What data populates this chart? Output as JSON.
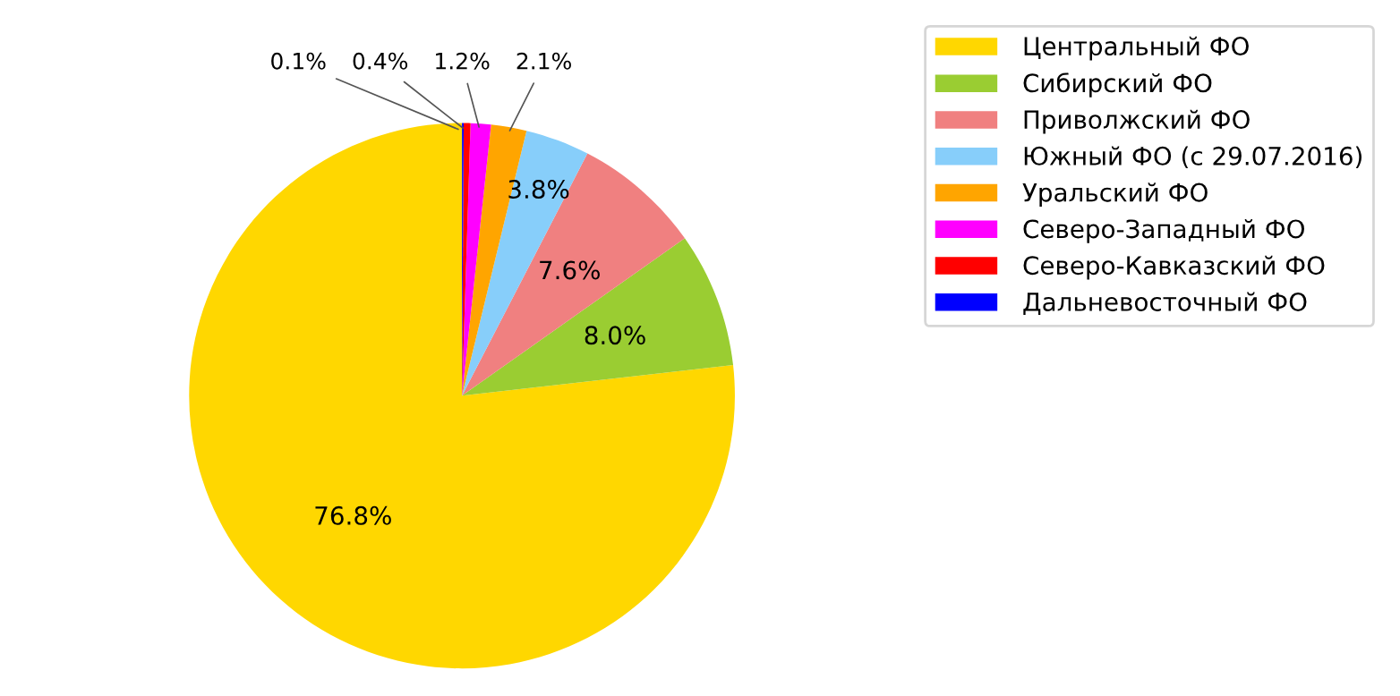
{
  "chart_data": {
    "type": "pie",
    "categories": [
      "Центральный ФО",
      "Сибирский ФО",
      "Приволжский ФО",
      "Южный ФО (с 29.07.2016)",
      "Уральский ФО",
      "Северо-Западный ФО",
      "Северо-Кавказский ФО",
      "Дальневосточный ФО"
    ],
    "values": [
      76.8,
      8.0,
      7.6,
      3.8,
      2.1,
      1.2,
      0.4,
      0.1
    ],
    "colors": [
      "#ffd700",
      "#9acd32",
      "#f08080",
      "#87cefa",
      "#ffa500",
      "#ff00ff",
      "#ff0000",
      "#0000ff"
    ],
    "value_labels": [
      "76.8%",
      "8.0%",
      "7.6%",
      "3.8%",
      "2.1%",
      "1.2%",
      "0.4%",
      "0.1%"
    ],
    "legend": "top right"
  }
}
